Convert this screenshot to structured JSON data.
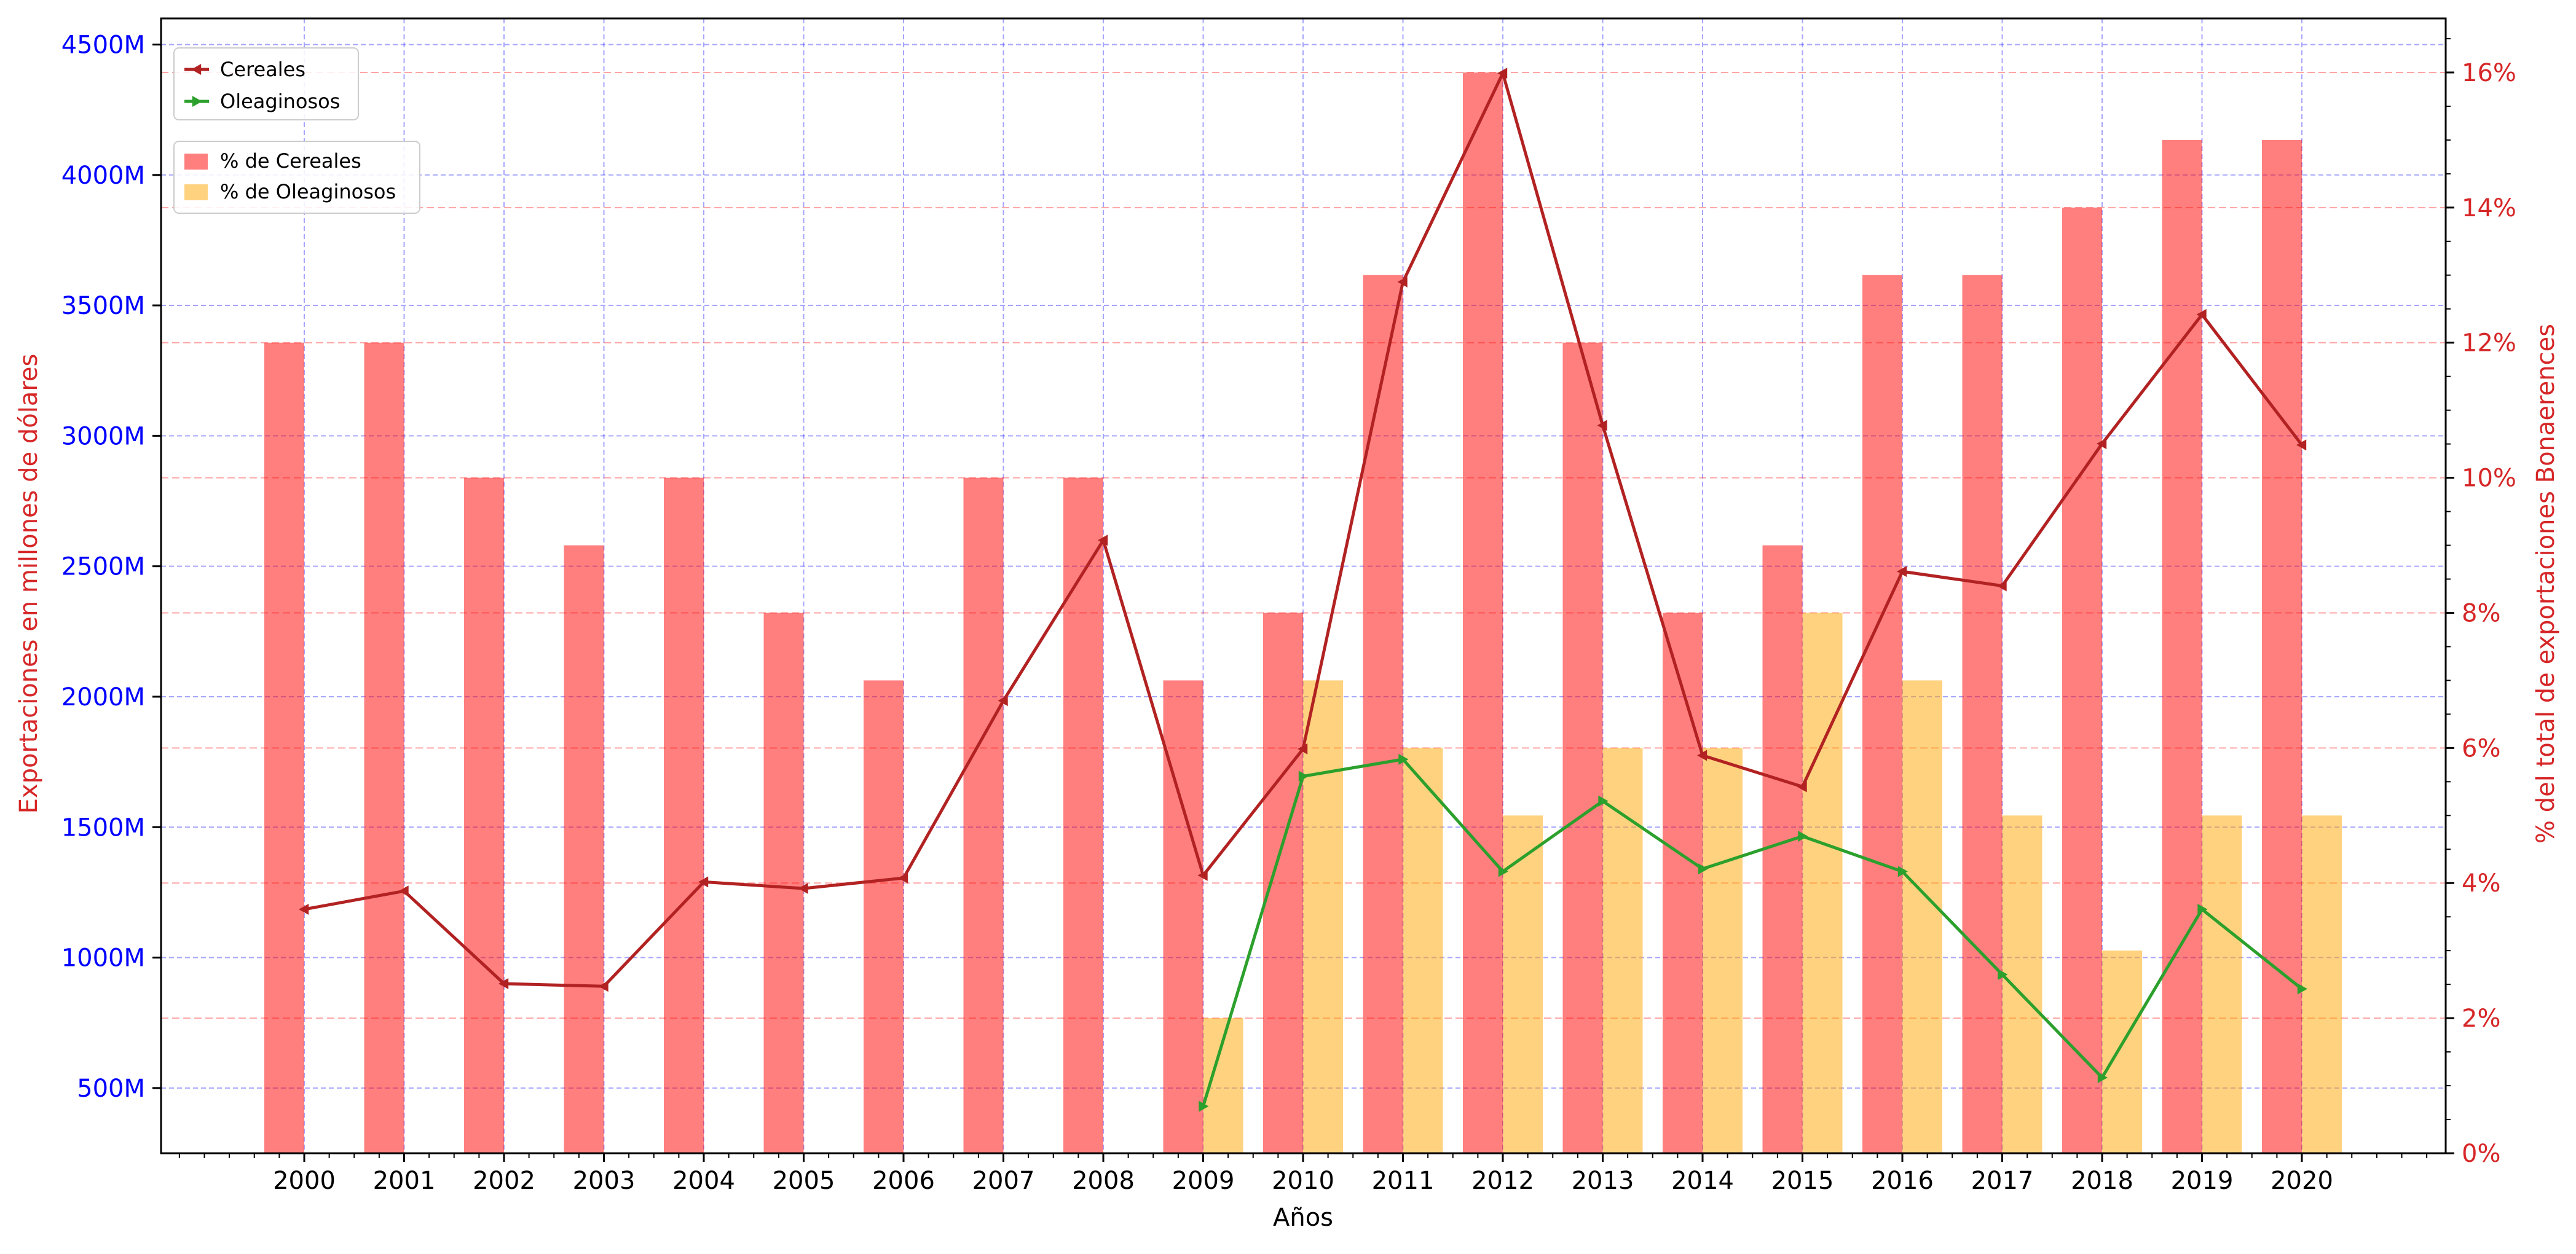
{
  "chart_data": {
    "type": "bar",
    "xlabel": "Años",
    "ylabel_left": "Exportaciones en millones de dólares",
    "ylabel_right": "% del total de exportaciones Bonaerences",
    "categories": [
      "2000",
      "2001",
      "2002",
      "2003",
      "2004",
      "2005",
      "2006",
      "2007",
      "2008",
      "2009",
      "2010",
      "2011",
      "2012",
      "2013",
      "2014",
      "2015",
      "2016",
      "2017",
      "2018",
      "2019",
      "2020"
    ],
    "left_axis": {
      "ylim": [
        250,
        4600
      ],
      "ticks": [
        500,
        1000,
        1500,
        2000,
        2500,
        3000,
        3500,
        4000,
        4500
      ],
      "tick_labels": [
        "500M",
        "1000M",
        "1500M",
        "2000M",
        "2500M",
        "3000M",
        "3500M",
        "4000M",
        "4500M"
      ],
      "tick_color": "#0000ff"
    },
    "right_axis": {
      "ylim": [
        0,
        16.8
      ],
      "ticks": [
        0,
        2,
        4,
        6,
        8,
        10,
        12,
        14,
        16
      ],
      "tick_labels": [
        "0%",
        "2%",
        "4%",
        "6%",
        "8%",
        "10%",
        "12%",
        "14%",
        "16%"
      ],
      "tick_color": "#d62728"
    },
    "grid": {
      "vertical": true,
      "left_horizontal": true,
      "right_horizontal": true
    },
    "bar_series": [
      {
        "name": "% de Cereales",
        "axis": "right",
        "color": "#ff0000",
        "opacity": 0.5,
        "values": [
          12,
          12,
          10,
          9,
          10,
          8,
          7,
          10,
          10,
          7,
          8,
          13,
          16,
          12,
          8,
          9,
          13,
          13,
          14,
          15,
          15
        ]
      },
      {
        "name": "% de Oleaginosos",
        "axis": "right",
        "color": "#ffa500",
        "opacity": 0.5,
        "values": [
          null,
          null,
          null,
          null,
          null,
          null,
          null,
          null,
          null,
          2,
          7,
          6,
          5,
          6,
          6,
          8,
          7,
          5,
          3,
          5,
          5
        ]
      }
    ],
    "line_series": [
      {
        "name": "Cereales",
        "axis": "left",
        "color": "#b22222",
        "marker": "left-triangle",
        "values": [
          1185,
          1255,
          900,
          890,
          1290,
          1265,
          1305,
          1985,
          2600,
          1315,
          1800,
          3590,
          4390,
          3040,
          1775,
          1655,
          2480,
          2425,
          2970,
          3465,
          2965
        ]
      },
      {
        "name": "Oleaginosos",
        "axis": "left",
        "color": "#2ca02c",
        "marker": "right-triangle",
        "values": [
          null,
          null,
          null,
          null,
          null,
          null,
          null,
          null,
          null,
          430,
          1695,
          1760,
          1330,
          1600,
          1340,
          1465,
          1330,
          935,
          540,
          1185,
          880
        ]
      }
    ],
    "legend_lines": {
      "placement": "upper-left",
      "entries": [
        "Cereales",
        "Oleaginosos"
      ]
    },
    "legend_bars": {
      "placement": "upper-left",
      "entries": [
        "% de Cereales",
        "% de Oleaginosos"
      ]
    }
  }
}
